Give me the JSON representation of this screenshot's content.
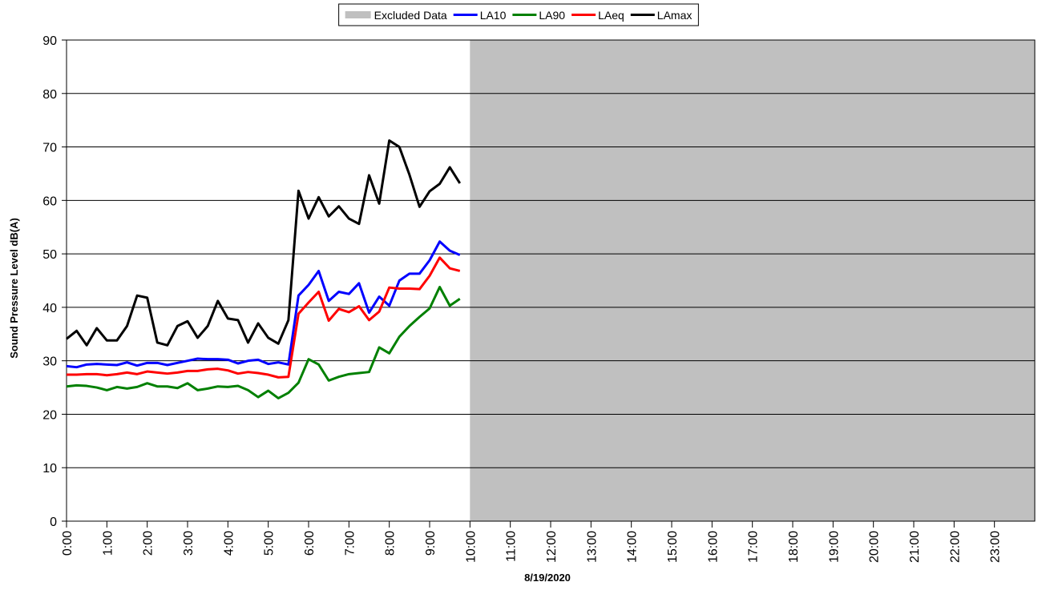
{
  "chart_data": {
    "type": "line",
    "xlabel": "8/19/2020",
    "ylabel": "Sound Pressure Level dB(A)",
    "excluded_data": {
      "name": "Excluded Data",
      "color": "#c0c0c0",
      "x_range": [
        10,
        24
      ]
    },
    "x": [
      0,
      0.25,
      0.5,
      0.75,
      1,
      1.25,
      1.5,
      1.75,
      2,
      2.25,
      2.5,
      2.75,
      3,
      3.25,
      3.5,
      3.75,
      4,
      4.25,
      4.5,
      4.75,
      5,
      5.25,
      5.5,
      5.75,
      6,
      6.25,
      6.5,
      6.75,
      7,
      7.25,
      7.5,
      7.75,
      8,
      8.25,
      8.5,
      8.75,
      9,
      9.25,
      9.5,
      9.75
    ],
    "series": [
      {
        "name": "LA10",
        "color": "#0000ff",
        "values": [
          29.0,
          28.8,
          29.3,
          29.4,
          29.3,
          29.2,
          29.7,
          29.1,
          29.6,
          29.6,
          29.2,
          29.6,
          30.0,
          30.4,
          30.3,
          30.3,
          30.2,
          29.5,
          30.0,
          30.2,
          29.4,
          29.7,
          29.3,
          42.2,
          44.2,
          46.8,
          41.2,
          42.9,
          42.5,
          44.5,
          39.0,
          42.0,
          40.3,
          45.0,
          46.3,
          46.3,
          48.8,
          52.3,
          50.6,
          49.8
        ]
      },
      {
        "name": "LA90",
        "color": "#008000",
        "values": [
          25.2,
          25.4,
          25.3,
          25.0,
          24.5,
          25.1,
          24.8,
          25.1,
          25.8,
          25.2,
          25.2,
          24.9,
          25.8,
          24.5,
          24.8,
          25.2,
          25.1,
          25.3,
          24.5,
          23.2,
          24.4,
          23.0,
          24.0,
          25.9,
          30.3,
          29.3,
          26.3,
          27.0,
          27.5,
          27.7,
          27.9,
          32.5,
          31.4,
          34.5,
          36.5,
          38.2,
          39.8,
          43.8,
          40.3,
          41.6
        ]
      },
      {
        "name": "LAeq",
        "color": "#ff0000",
        "values": [
          27.4,
          27.4,
          27.5,
          27.5,
          27.3,
          27.5,
          27.8,
          27.5,
          28.0,
          27.8,
          27.6,
          27.8,
          28.1,
          28.1,
          28.4,
          28.5,
          28.2,
          27.6,
          27.9,
          27.7,
          27.4,
          26.9,
          27.0,
          38.8,
          40.9,
          42.9,
          37.5,
          39.7,
          39.1,
          40.2,
          37.6,
          39.2,
          43.7,
          43.5,
          43.5,
          43.4,
          45.9,
          49.3,
          47.3,
          46.8
        ]
      },
      {
        "name": "LAmax",
        "color": "#000000",
        "values": [
          34.1,
          35.6,
          32.9,
          36.1,
          33.8,
          33.8,
          36.5,
          42.2,
          41.8,
          33.4,
          32.9,
          36.5,
          37.4,
          34.3,
          36.5,
          41.2,
          37.9,
          37.6,
          33.4,
          37.0,
          34.3,
          33.2,
          37.6,
          61.8,
          56.6,
          60.6,
          57.0,
          58.9,
          56.6,
          55.6,
          64.7,
          59.4,
          71.2,
          70.0,
          64.8,
          58.8,
          61.7,
          63.1,
          66.2,
          63.2
        ]
      }
    ],
    "xlim": [
      0,
      24
    ],
    "xticks": [
      {
        "value": 0,
        "label": "0:00"
      },
      {
        "value": 1,
        "label": "1:00"
      },
      {
        "value": 2,
        "label": "2:00"
      },
      {
        "value": 3,
        "label": "3:00"
      },
      {
        "value": 4,
        "label": "4:00"
      },
      {
        "value": 5,
        "label": "5:00"
      },
      {
        "value": 6,
        "label": "6:00"
      },
      {
        "value": 7,
        "label": "7:00"
      },
      {
        "value": 8,
        "label": "8:00"
      },
      {
        "value": 9,
        "label": "9:00"
      },
      {
        "value": 10,
        "label": "10:00"
      },
      {
        "value": 11,
        "label": "11:00"
      },
      {
        "value": 12,
        "label": "12:00"
      },
      {
        "value": 13,
        "label": "13:00"
      },
      {
        "value": 14,
        "label": "14:00"
      },
      {
        "value": 15,
        "label": "15:00"
      },
      {
        "value": 16,
        "label": "16:00"
      },
      {
        "value": 17,
        "label": "17:00"
      },
      {
        "value": 18,
        "label": "18:00"
      },
      {
        "value": 19,
        "label": "19:00"
      },
      {
        "value": 20,
        "label": "20:00"
      },
      {
        "value": 21,
        "label": "21:00"
      },
      {
        "value": 22,
        "label": "22:00"
      },
      {
        "value": 23,
        "label": "23:00"
      }
    ],
    "ylim": [
      0,
      90
    ],
    "yticks": [
      0,
      10,
      20,
      30,
      40,
      50,
      60,
      70,
      80,
      90
    ],
    "grid": true
  }
}
